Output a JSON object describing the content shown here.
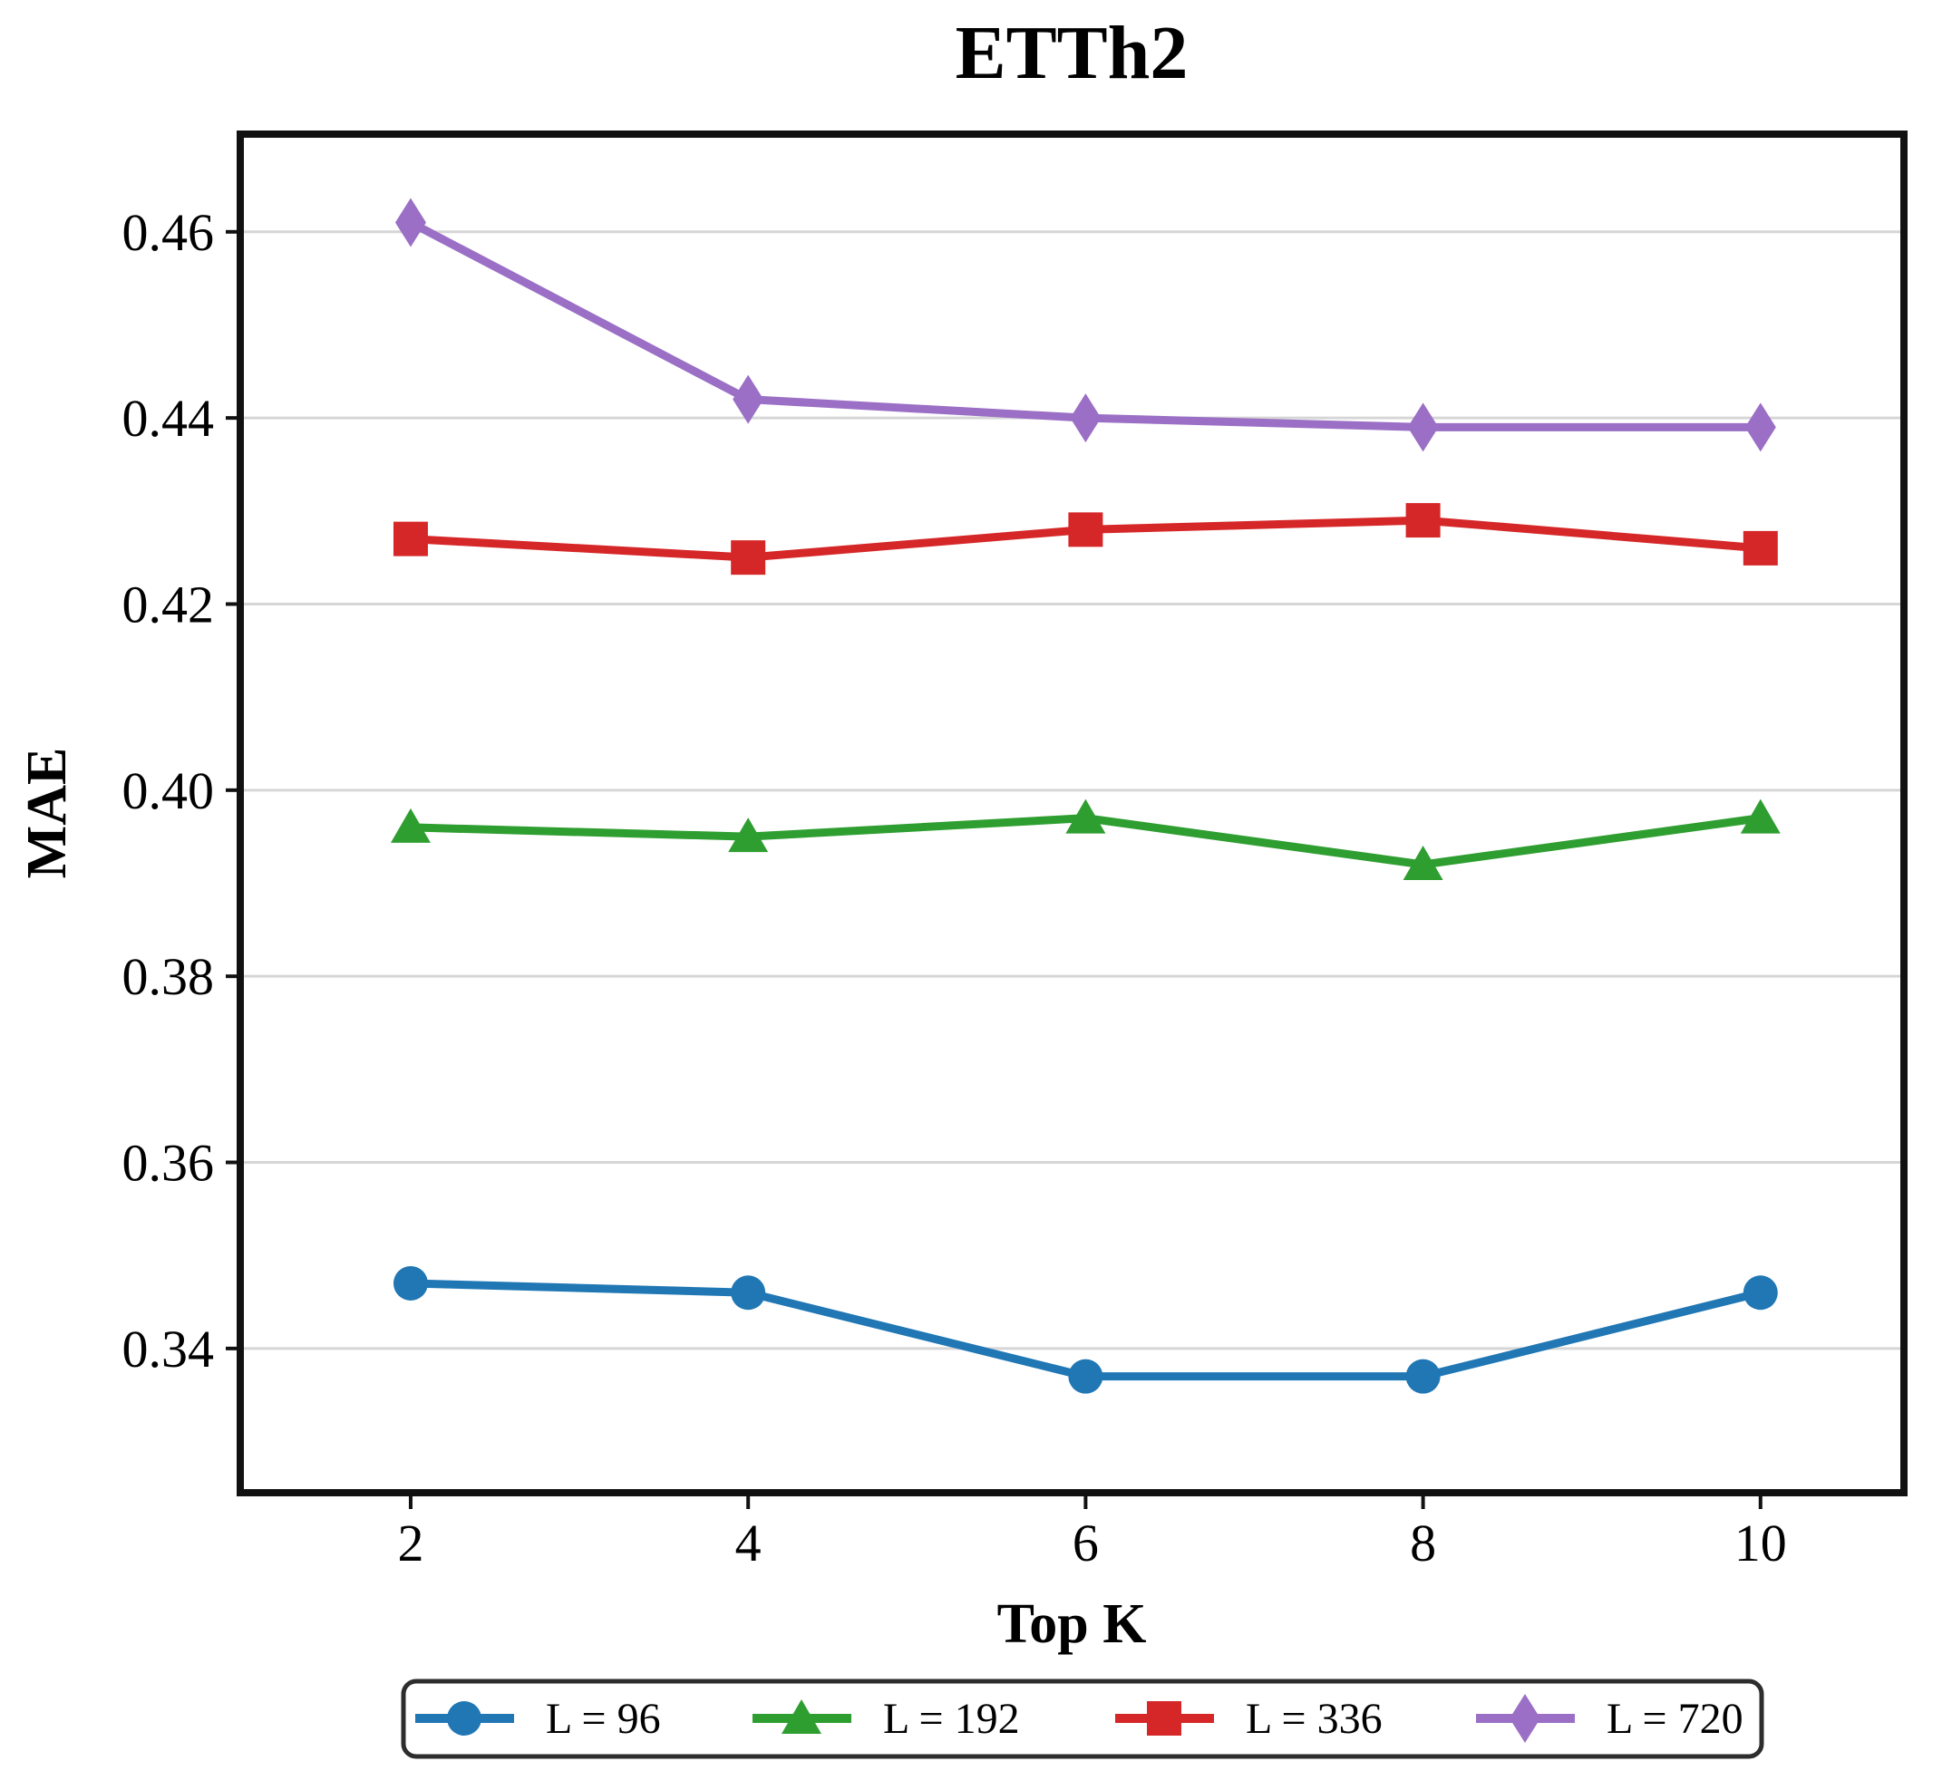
{
  "chart_data": {
    "type": "line",
    "title": "ETTh2",
    "xlabel": "Top K",
    "ylabel": "MAE",
    "x": [
      2,
      4,
      6,
      8,
      10
    ],
    "xtick_labels": [
      "2",
      "4",
      "6",
      "8",
      "10"
    ],
    "yticks": [
      0.34,
      0.36,
      0.38,
      0.4,
      0.42,
      0.44,
      0.46
    ],
    "ytick_labels": [
      "0.34",
      "0.36",
      "0.38",
      "0.40",
      "0.42",
      "0.44",
      "0.46"
    ],
    "xlim": [
      0.99,
      10.85
    ],
    "ylim": [
      0.3245,
      0.4705
    ],
    "grid": "horizontal-only",
    "grid_color": "#d6d6d6",
    "frame_color": "#111111",
    "legend_position": "bottom-outside",
    "series": [
      {
        "name": "L = 96",
        "color": "#2077b4",
        "marker": "circle",
        "values": [
          0.347,
          0.346,
          0.337,
          0.337,
          0.346
        ]
      },
      {
        "name": "L = 192",
        "color": "#2f9e31",
        "marker": "triangle",
        "values": [
          0.396,
          0.395,
          0.397,
          0.392,
          0.397
        ]
      },
      {
        "name": "L = 336",
        "color": "#d62728",
        "marker": "square",
        "values": [
          0.427,
          0.425,
          0.428,
          0.429,
          0.426
        ]
      },
      {
        "name": "L = 720",
        "color": "#9a6fc5",
        "marker": "diamond",
        "values": [
          0.461,
          0.442,
          0.44,
          0.439,
          0.439
        ]
      }
    ]
  }
}
